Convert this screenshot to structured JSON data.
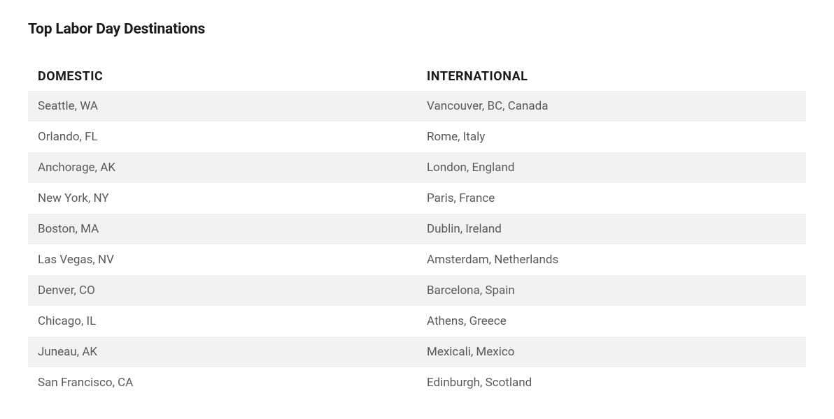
{
  "title": "Top Labor Day Destinations",
  "table": {
    "type": "table",
    "columns": [
      "DOMESTIC",
      "INTERNATIONAL"
    ],
    "rows": [
      [
        "Seattle, WA",
        "Vancouver, BC, Canada"
      ],
      [
        "Orlando, FL",
        "Rome, Italy"
      ],
      [
        "Anchorage, AK",
        "London, England"
      ],
      [
        "New York, NY",
        "Paris, France"
      ],
      [
        "Boston, MA",
        "Dublin, Ireland"
      ],
      [
        "Las Vegas, NV",
        "Amsterdam, Netherlands"
      ],
      [
        "Denver, CO",
        "Barcelona, Spain"
      ],
      [
        "Chicago, IL",
        "Athens, Greece"
      ],
      [
        "Juneau, AK",
        "Mexicali, Mexico"
      ],
      [
        "San Francisco, CA",
        "Edinburgh, Scotland"
      ]
    ],
    "header_color": "#1a1a1a",
    "header_fontsize": 18,
    "cell_color": "#5a5a5a",
    "cell_fontsize": 17,
    "row_odd_bg": "#f2f2f2",
    "row_even_bg": "#ffffff",
    "background_color": "#ffffff"
  }
}
